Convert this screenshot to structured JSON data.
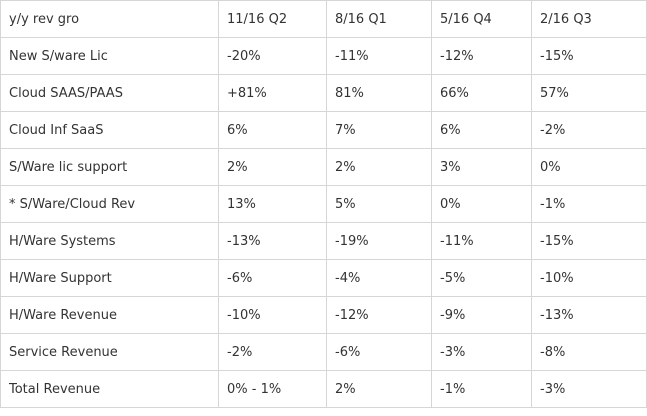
{
  "table": {
    "header": [
      "y/y rev gro",
      "11/16 Q2",
      "8/16 Q1",
      "5/16 Q4",
      "2/16 Q3"
    ],
    "rows": [
      [
        "New S/ware Lic",
        "-20%",
        "-11%",
        "-12%",
        "-15%"
      ],
      [
        "Cloud SAAS/PAAS",
        "+81%",
        "81%",
        "66%",
        "57%"
      ],
      [
        "Cloud Inf SaaS",
        "6%",
        "7%",
        "6%",
        "-2%"
      ],
      [
        "S/Ware lic support",
        "2%",
        "2%",
        "3%",
        "0%"
      ],
      [
        "* S/Ware/Cloud Rev",
        "13%",
        "5%",
        "0%",
        "-1%"
      ],
      [
        "H/Ware Systems",
        "-13%",
        "-19%",
        "-11%",
        "-15%"
      ],
      [
        "H/Ware Support",
        "-6%",
        "-4%",
        "-5%",
        "-10%"
      ],
      [
        "H/Ware Revenue",
        "-10%",
        "-12%",
        "-9%",
        "-13%"
      ],
      [
        "Service Revenue",
        "-2%",
        "-6%",
        "-3%",
        "-8%"
      ],
      [
        "Total Revenue",
        "0% - 1%",
        "2%",
        "-1%",
        "-3%"
      ]
    ]
  }
}
